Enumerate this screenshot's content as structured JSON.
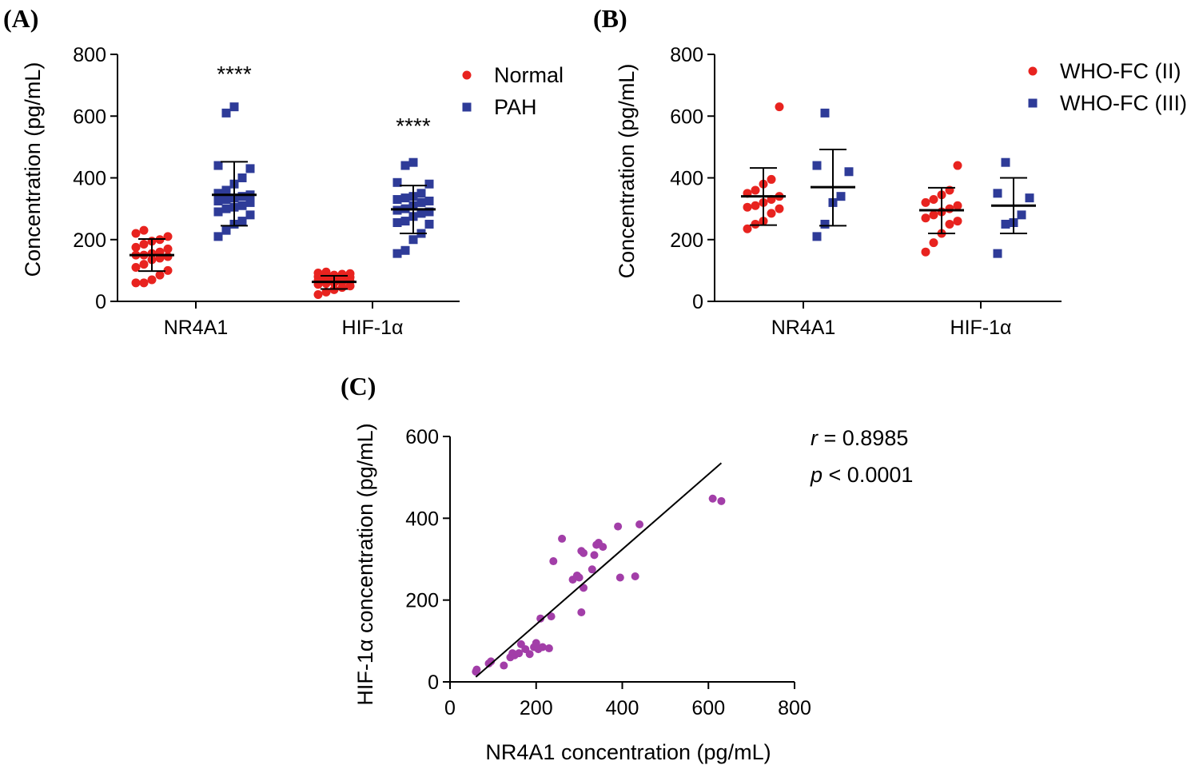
{
  "chart_data": [
    {
      "panel": "(A)",
      "type": "scatter",
      "categories": [
        "NR4A1",
        "HIF-1α"
      ],
      "ylabel": "Concentration (pg/mL)",
      "ylim": [
        0,
        800
      ],
      "yticks": [
        0,
        200,
        400,
        600,
        800
      ],
      "legend_position": "top-right",
      "significance": [
        "****",
        "****"
      ],
      "series": [
        {
          "name": "Normal",
          "color": "#e8231f",
          "marker": "circle",
          "groups": [
            {
              "category": "NR4A1",
              "values": [
                60,
                60,
                70,
                85,
                100,
                110,
                120,
                135,
                140,
                145,
                150,
                150,
                155,
                160,
                170,
                175,
                185,
                195,
                200,
                210,
                220,
                230
              ],
              "mean": 150,
              "sd_low": 98,
              "sd_high": 202
            },
            {
              "category": "HIF-1α",
              "values": [
                22,
                30,
                38,
                45,
                50,
                55,
                58,
                60,
                62,
                65,
                68,
                70,
                72,
                75,
                78,
                80,
                82,
                85,
                88,
                90,
                92,
                95
              ],
              "mean": 63,
              "sd_low": 40,
              "sd_high": 83
            }
          ]
        },
        {
          "name": "PAH",
          "color": "#2e3b98",
          "marker": "square",
          "groups": [
            {
              "category": "NR4A1",
              "values": [
                210,
                230,
                250,
                260,
                280,
                290,
                300,
                305,
                310,
                320,
                325,
                330,
                335,
                340,
                345,
                350,
                360,
                380,
                400,
                430,
                440,
                610,
                630
              ],
              "mean": 345,
              "sd_low": 245,
              "sd_high": 452
            },
            {
              "category": "HIF-1α",
              "values": [
                155,
                165,
                200,
                220,
                250,
                255,
                260,
                275,
                285,
                290,
                295,
                300,
                310,
                320,
                325,
                330,
                335,
                340,
                350,
                380,
                385,
                440,
                450
              ],
              "mean": 298,
              "sd_low": 220,
              "sd_high": 375
            }
          ]
        }
      ]
    },
    {
      "panel": "(B)",
      "type": "scatter",
      "categories": [
        "NR4A1",
        "HIF-1α"
      ],
      "ylabel": "Concentration (pg/mL)",
      "ylim": [
        0,
        800
      ],
      "yticks": [
        0,
        200,
        400,
        600,
        800
      ],
      "legend_position": "top-right",
      "series": [
        {
          "name": "WHO-FC (II)",
          "color": "#e8231f",
          "marker": "circle",
          "groups": [
            {
              "category": "NR4A1",
              "values": [
                235,
                250,
                260,
                285,
                300,
                305,
                310,
                320,
                330,
                340,
                350,
                360,
                380,
                395,
                630
              ],
              "mean": 340,
              "sd_low": 247,
              "sd_high": 432
            },
            {
              "category": "HIF-1α",
              "values": [
                160,
                190,
                220,
                250,
                260,
                270,
                280,
                290,
                300,
                310,
                320,
                330,
                345,
                360,
                440
              ],
              "mean": 295,
              "sd_low": 220,
              "sd_high": 368
            }
          ]
        },
        {
          "name": "WHO-FC (III)",
          "color": "#2e3b98",
          "marker": "square",
          "groups": [
            {
              "category": "NR4A1",
              "values": [
                210,
                250,
                320,
                340,
                420,
                440,
                610
              ],
              "mean": 370,
              "sd_low": 245,
              "sd_high": 492
            },
            {
              "category": "HIF-1α",
              "values": [
                155,
                250,
                255,
                280,
                335,
                350,
                450
              ],
              "mean": 310,
              "sd_low": 220,
              "sd_high": 400
            }
          ]
        }
      ]
    },
    {
      "panel": "(C)",
      "type": "scatter",
      "xlabel": "NR4A1 concentration (pg/mL)",
      "ylabel": "HIF-1α concentration (pg/mL)",
      "xlim": [
        0,
        800
      ],
      "ylim": [
        0,
        600
      ],
      "xticks": [
        0,
        200,
        400,
        600,
        800
      ],
      "yticks": [
        0,
        200,
        400,
        600
      ],
      "color": "#a23ea8",
      "r_symbol": "r",
      "r_text": " = 0.8985",
      "p_symbol": "p",
      "p_text": " < 0.0001",
      "fit_line": {
        "x": [
          60,
          630
        ],
        "y": [
          12,
          535
        ]
      },
      "points": [
        [
          60,
          25
        ],
        [
          62,
          30
        ],
        [
          90,
          45
        ],
        [
          95,
          50
        ],
        [
          125,
          40
        ],
        [
          140,
          60
        ],
        [
          145,
          70
        ],
        [
          150,
          65
        ],
        [
          160,
          70
        ],
        [
          165,
          92
        ],
        [
          175,
          80
        ],
        [
          185,
          68
        ],
        [
          195,
          85
        ],
        [
          200,
          95
        ],
        [
          205,
          80
        ],
        [
          210,
          155
        ],
        [
          215,
          85
        ],
        [
          230,
          82
        ],
        [
          235,
          160
        ],
        [
          240,
          295
        ],
        [
          260,
          350
        ],
        [
          285,
          250
        ],
        [
          295,
          260
        ],
        [
          300,
          255
        ],
        [
          305,
          170
        ],
        [
          305,
          320
        ],
        [
          310,
          315
        ],
        [
          310,
          230
        ],
        [
          330,
          275
        ],
        [
          335,
          310
        ],
        [
          340,
          335
        ],
        [
          345,
          340
        ],
        [
          355,
          330
        ],
        [
          390,
          380
        ],
        [
          395,
          255
        ],
        [
          430,
          258
        ],
        [
          440,
          385
        ],
        [
          610,
          448
        ],
        [
          630,
          442
        ]
      ]
    }
  ]
}
